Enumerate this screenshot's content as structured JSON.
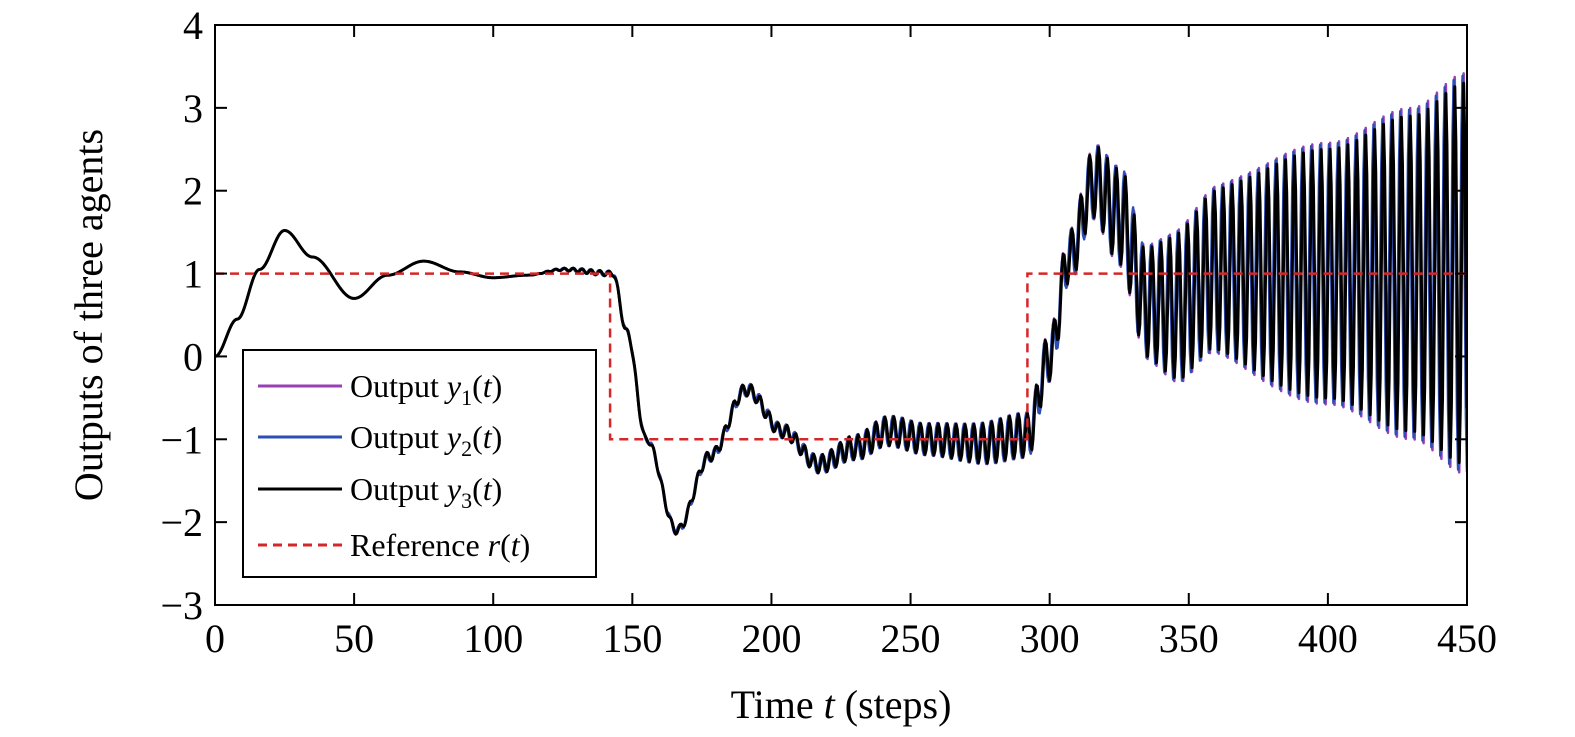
{
  "chart_data": {
    "type": "line",
    "xlabel": {
      "prefix": "Time ",
      "var": "t",
      "suffix": " (steps)"
    },
    "ylabel": "Outputs of three agents",
    "xlim": [
      0,
      450
    ],
    "ylim": [
      -3,
      4
    ],
    "xticks": [
      0,
      50,
      100,
      150,
      200,
      250,
      300,
      350,
      400,
      450
    ],
    "yticks": [
      -3,
      -2,
      -1,
      0,
      1,
      2,
      3,
      4
    ],
    "ytick_labels": [
      "−3",
      "−2",
      "−1",
      "0",
      "1",
      "2",
      "3",
      "4"
    ],
    "grid": false,
    "legend_position": "bottom-left",
    "series": [
      {
        "label": "Output",
        "var": "y",
        "sub": "1",
        "arg": "t",
        "color": "#9b3fb5",
        "style": "solid",
        "phase": 0.35,
        "amp_scale": 1.12
      },
      {
        "label": "Output",
        "var": "y",
        "sub": "2",
        "arg": "t",
        "color": "#2b4fb5",
        "style": "solid",
        "phase": 0.8,
        "amp_scale": 1.04
      },
      {
        "label": "Output",
        "var": "y",
        "sub": "3",
        "arg": "t",
        "color": "#000000",
        "style": "solid",
        "phase": 0.0,
        "amp_scale": 1.0
      },
      {
        "label": "Reference",
        "var": "r",
        "sub": "",
        "arg": "t",
        "color": "#d62728",
        "style": "dashed"
      }
    ],
    "reference_steps": [
      {
        "x_start": 0,
        "x_end": 142,
        "value": 1
      },
      {
        "x_start": 142,
        "x_end": 292,
        "value": -1
      },
      {
        "x_start": 292,
        "x_end": 450,
        "value": 1
      }
    ],
    "output_envelope": [
      {
        "x": 0,
        "y": 0
      },
      {
        "x": 8,
        "y": 0.45
      },
      {
        "x": 16,
        "y": 1.05
      },
      {
        "x": 25,
        "y": 1.52
      },
      {
        "x": 35,
        "y": 1.2
      },
      {
        "x": 50,
        "y": 0.7
      },
      {
        "x": 62,
        "y": 0.98
      },
      {
        "x": 75,
        "y": 1.15
      },
      {
        "x": 88,
        "y": 1.02
      },
      {
        "x": 100,
        "y": 0.95
      },
      {
        "x": 112,
        "y": 0.98
      },
      {
        "x": 125,
        "y": 1.05
      },
      {
        "x": 143,
        "y": 1.0
      },
      {
        "x": 148,
        "y": 0.3
      },
      {
        "x": 155,
        "y": -1.0
      },
      {
        "x": 166,
        "y": -2.1
      },
      {
        "x": 178,
        "y": -1.2
      },
      {
        "x": 191,
        "y": -0.4
      },
      {
        "x": 204,
        "y": -0.9
      },
      {
        "x": 217,
        "y": -1.3
      },
      {
        "x": 230,
        "y": -1.1
      },
      {
        "x": 242,
        "y": -0.9
      },
      {
        "x": 256,
        "y": -1.0
      },
      {
        "x": 275,
        "y": -1.05
      },
      {
        "x": 292,
        "y": -0.95
      },
      {
        "x": 300,
        "y": 0.0
      },
      {
        "x": 307,
        "y": 1.2
      },
      {
        "x": 316,
        "y": 2.1
      },
      {
        "x": 325,
        "y": 1.7
      },
      {
        "x": 335,
        "y": 0.65
      },
      {
        "x": 345,
        "y": 0.6
      },
      {
        "x": 360,
        "y": 1.05
      },
      {
        "x": 380,
        "y": 1.0
      },
      {
        "x": 400,
        "y": 1.0
      },
      {
        "x": 425,
        "y": 1.0
      },
      {
        "x": 450,
        "y": 1.0
      }
    ],
    "oscillation_amplitude": [
      {
        "x": 0,
        "a": 0
      },
      {
        "x": 110,
        "a": 0
      },
      {
        "x": 140,
        "a": 0.03
      },
      {
        "x": 200,
        "a": 0.08
      },
      {
        "x": 250,
        "a": 0.18
      },
      {
        "x": 290,
        "a": 0.26
      },
      {
        "x": 305,
        "a": 0.3
      },
      {
        "x": 330,
        "a": 0.6
      },
      {
        "x": 350,
        "a": 0.9
      },
      {
        "x": 400,
        "a": 1.5
      },
      {
        "x": 430,
        "a": 1.9
      },
      {
        "x": 450,
        "a": 2.3
      }
    ],
    "oscillation_period_steps": 3.2
  }
}
